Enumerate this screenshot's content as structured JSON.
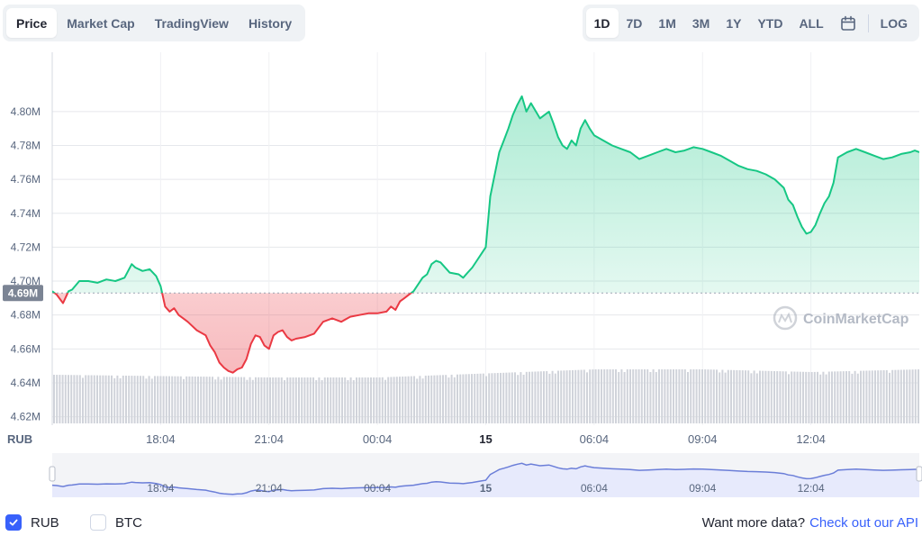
{
  "tabs": [
    "Price",
    "Market Cap",
    "TradingView",
    "History"
  ],
  "active_tab": "Price",
  "ranges": [
    "1D",
    "7D",
    "1M",
    "3M",
    "1Y",
    "YTD",
    "ALL"
  ],
  "active_range": "1D",
  "log_label": "LOG",
  "calendar_icon": "calendar-icon",
  "colors": {
    "up": "#16c784",
    "down": "#ea3943",
    "navigator_line": "#6b7ed8",
    "navigator_fill": "#e7eafc",
    "volume": "#d0d3da",
    "grid": "#e6e8ec",
    "checkbox": "#3861fb"
  },
  "watermark": "CoinMarketCap",
  "current_price_label": "4.69M",
  "footer": {
    "rub_label": "RUB",
    "btc_label": "BTC",
    "more_data": "Want more data?",
    "api_link": "Check out our API"
  },
  "chart_data": {
    "type": "line",
    "currency_label": "RUB",
    "yticks": [
      4.62,
      4.64,
      4.66,
      4.68,
      4.7,
      4.72,
      4.74,
      4.76,
      4.78,
      4.8
    ],
    "ytick_labels": [
      "4.62M",
      "4.64M",
      "4.66M",
      "4.68M",
      "4.70M",
      "4.72M",
      "4.74M",
      "4.76M",
      "4.78M",
      "4.80M"
    ],
    "ylim": [
      4.615,
      4.835
    ],
    "xlim": [
      0,
      960
    ],
    "xticks": [
      120,
      240,
      360,
      480,
      600,
      720,
      840
    ],
    "xtick_labels": [
      "18:04",
      "21:04",
      "00:04",
      "15",
      "06:04",
      "09:04",
      "12:04"
    ],
    "reference_value": 4.693,
    "series": [
      {
        "x": [
          0,
          5,
          12,
          18,
          22,
          30,
          40,
          50,
          60,
          70,
          80,
          88,
          92,
          100,
          108,
          115,
          120,
          125,
          130,
          135,
          140,
          145,
          150,
          160,
          170,
          175,
          180,
          185,
          190,
          195,
          200,
          205,
          210,
          215,
          220,
          225,
          230,
          235,
          240,
          245,
          250,
          255,
          260,
          265,
          270,
          280,
          290,
          300,
          310,
          320,
          330,
          340,
          350,
          360,
          370,
          375,
          380,
          385,
          390,
          395,
          400,
          405,
          410,
          415,
          420,
          425,
          430,
          440,
          450,
          455,
          460,
          465,
          470,
          475,
          480,
          485,
          490,
          495,
          500,
          505,
          510,
          515,
          520,
          525,
          530,
          540,
          550,
          555,
          560,
          565,
          570,
          575,
          580,
          585,
          590,
          595,
          600,
          610,
          620,
          630,
          640,
          650,
          660,
          670,
          680,
          690,
          700,
          710,
          720,
          730,
          740,
          750,
          760,
          770,
          780,
          790,
          800,
          810,
          815,
          820,
          825,
          830,
          835,
          840,
          845,
          850,
          855,
          860,
          865,
          870,
          880,
          890,
          900,
          910,
          920,
          930,
          940,
          950,
          955,
          960
        ],
        "y": [
          4.694,
          4.692,
          4.687,
          4.694,
          4.695,
          4.7,
          4.7,
          4.699,
          4.701,
          4.7,
          4.702,
          4.71,
          4.708,
          4.706,
          4.707,
          4.703,
          4.697,
          4.685,
          4.682,
          4.684,
          4.68,
          4.678,
          4.676,
          4.671,
          4.668,
          4.662,
          4.658,
          4.652,
          4.649,
          4.647,
          4.646,
          4.648,
          4.649,
          4.654,
          4.663,
          4.668,
          4.667,
          4.662,
          4.66,
          4.668,
          4.67,
          4.671,
          4.667,
          4.665,
          4.666,
          4.667,
          4.669,
          4.676,
          4.678,
          4.676,
          4.679,
          4.68,
          4.681,
          4.681,
          4.682,
          4.685,
          4.683,
          4.688,
          4.69,
          4.692,
          4.694,
          4.698,
          4.702,
          4.704,
          4.71,
          4.712,
          4.711,
          4.705,
          4.704,
          4.702,
          4.705,
          4.708,
          4.712,
          4.716,
          4.72,
          4.75,
          4.763,
          4.776,
          4.783,
          4.79,
          4.798,
          4.804,
          4.809,
          4.8,
          4.805,
          4.796,
          4.8,
          4.793,
          4.785,
          4.78,
          4.778,
          4.783,
          4.78,
          4.79,
          4.795,
          4.79,
          4.786,
          4.783,
          4.78,
          4.778,
          4.776,
          4.772,
          4.774,
          4.776,
          4.778,
          4.776,
          4.777,
          4.779,
          4.778,
          4.776,
          4.774,
          4.771,
          4.768,
          4.766,
          4.765,
          4.763,
          4.76,
          4.755,
          4.748,
          4.745,
          4.738,
          4.732,
          4.728,
          4.729,
          4.733,
          4.74,
          4.746,
          4.75,
          4.758,
          4.773,
          4.776,
          4.778,
          4.776,
          4.774,
          4.772,
          4.773,
          4.775,
          4.776,
          4.777,
          4.776
        ]
      }
    ],
    "volume": {
      "x": [
        0,
        120,
        240,
        360,
        480,
        600,
        720,
        840,
        960
      ],
      "values": [
        36,
        35,
        34,
        34,
        37,
        40,
        40,
        38,
        40
      ],
      "unit": "relative"
    },
    "navigator_xtick_labels": [
      "18:04",
      "21:04",
      "00:04",
      "15",
      "06:04",
      "09:04",
      "12:04"
    ]
  }
}
